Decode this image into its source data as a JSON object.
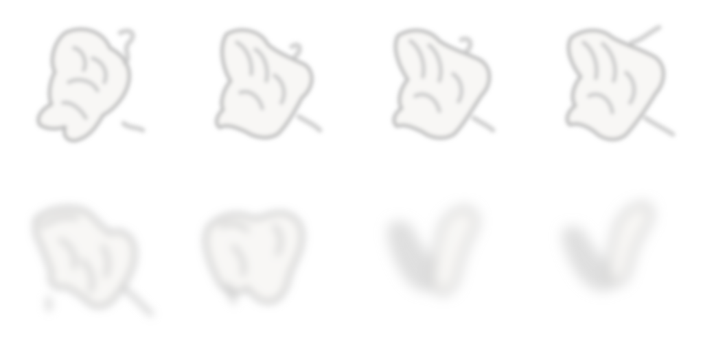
{
  "sprite_sheet": {
    "background_color": "#ffffff",
    "smoke_fill_color": "#f8f7f5",
    "smoke_edge_color": "#b9b9b9",
    "frames": [
      {
        "index": 1,
        "row": 1,
        "dissipation": 0.0
      },
      {
        "index": 2,
        "row": 1,
        "dissipation": 0.1
      },
      {
        "index": 3,
        "row": 1,
        "dissipation": 0.2
      },
      {
        "index": 4,
        "row": 1,
        "dissipation": 0.3
      },
      {
        "index": 5,
        "row": 2,
        "dissipation": 0.45
      },
      {
        "index": 6,
        "row": 2,
        "dissipation": 0.6
      },
      {
        "index": 7,
        "row": 2,
        "dissipation": 0.75
      },
      {
        "index": 8,
        "row": 2,
        "dissipation": 0.9
      }
    ]
  }
}
